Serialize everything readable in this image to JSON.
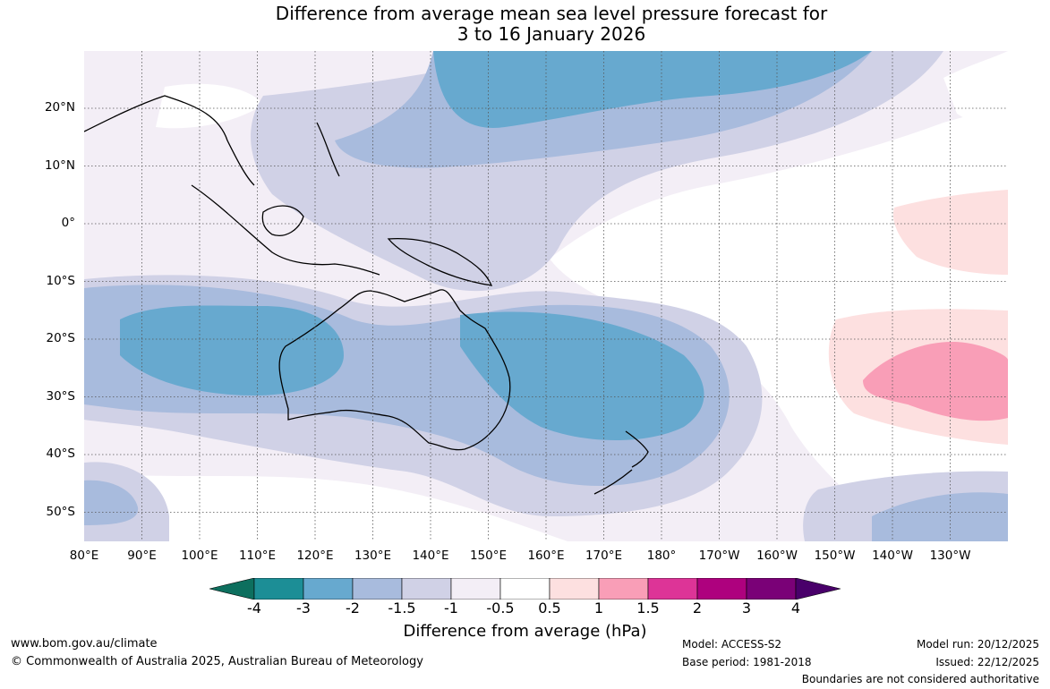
{
  "title": {
    "line1": "Difference from average mean sea level pressure forecast for",
    "line2": "3 to 16 January 2026"
  },
  "map": {
    "lat_labels": [
      "20°N",
      "10°N",
      "0°",
      "10°S",
      "20°S",
      "30°S",
      "40°S",
      "50°S"
    ],
    "lon_labels": [
      "80°E",
      "90°E",
      "100°E",
      "110°E",
      "120°E",
      "130°E",
      "140°E",
      "150°E",
      "160°E",
      "170°E",
      "180°",
      "170°W",
      "160°W",
      "150°W",
      "140°W",
      "130°W"
    ],
    "lat_range": [
      -55,
      30
    ],
    "lon_range": [
      80,
      240
    ]
  },
  "colorbar": {
    "labels": [
      "-4",
      "-3",
      "-2",
      "-1.5",
      "-1",
      "-0.5",
      "0.5",
      "1",
      "1.5",
      "2",
      "3",
      "4"
    ],
    "colors": [
      "#0d6f5e",
      "#1c8e96",
      "#67a9cf",
      "#a8bbdd",
      "#d0d1e6",
      "#f3eef6",
      "#ffffff",
      "#fde0e0",
      "#f99eb7",
      "#dd3497",
      "#ae017e",
      "#7a0177",
      "#49006a"
    ],
    "title": "Difference from average (hPa)"
  },
  "footer": {
    "website": "www.bom.gov.au/climate",
    "copyright": "© Commonwealth of Australia 2025, Australian Bureau of Meteorology",
    "model": "Model: ACCESS-S2",
    "base_period": "Base period: 1981-2018",
    "model_run": "Model run: 20/12/2025",
    "issued": "Issued: 22/12/2025",
    "disclaimer": "Boundaries are not considered authoritative"
  }
}
